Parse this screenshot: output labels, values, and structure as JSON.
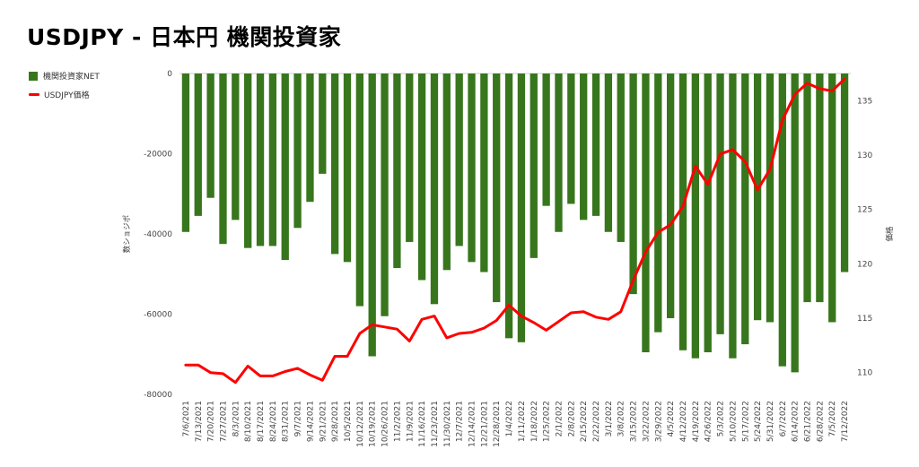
{
  "title": "USDJPY - 日本円 機関投資家",
  "legend": {
    "bar_label": "機関投資家NET",
    "line_label": "USDJPY価格"
  },
  "colors": {
    "bar": "#38761d",
    "line": "#ff0000"
  },
  "chart_data": {
    "type": "bar",
    "title": "USDJPY - 日本円 機関投資家",
    "xlabel": "",
    "ylabel": "数ショジポ",
    "y2label": "価格",
    "ylim": [
      -80000,
      0
    ],
    "y2lim": [
      108,
      137.5
    ],
    "yticks": [
      "0",
      "-20000",
      "-40000",
      "-60000",
      "-80000"
    ],
    "y2ticks": [
      "110",
      "115",
      "120",
      "125",
      "130",
      "135"
    ],
    "legend_position": "top-left",
    "categories": [
      "7/6/2021",
      "7/13/2021",
      "7/20/2021",
      "7/27/2021",
      "8/3/2021",
      "8/10/2021",
      "8/17/2021",
      "8/24/2021",
      "8/31/2021",
      "9/7/2021",
      "9/14/2021",
      "9/21/2021",
      "9/28/2021",
      "10/5/2021",
      "10/12/2021",
      "10/19/2021",
      "10/26/2021",
      "11/2/2021",
      "11/9/2021",
      "11/16/2021",
      "11/23/2021",
      "11/30/2021",
      "12/7/2021",
      "12/14/2021",
      "12/21/2021",
      "12/28/2021",
      "1/4/2022",
      "1/11/2022",
      "1/18/2022",
      "1/25/2022",
      "2/1/2022",
      "2/8/2022",
      "2/15/2022",
      "2/22/2022",
      "3/1/2022",
      "3/8/2022",
      "3/15/2022",
      "3/22/2022",
      "3/29/2022",
      "4/5/2022",
      "4/12/2022",
      "4/19/2022",
      "4/26/2022",
      "5/3/2022",
      "5/10/2022",
      "5/17/2022",
      "5/24/2022",
      "5/31/2022",
      "6/7/2022",
      "6/14/2022",
      "6/21/2022",
      "6/28/2022",
      "7/5/2022",
      "7/12/2022"
    ],
    "x_tick_labels": [
      "7/6/2021",
      "7/13/2021",
      "7/20/2021",
      "7/27/2021",
      "8/3/2021",
      "8/10/2021",
      "8/17/2021",
      "8/24/2021",
      "8/31/2021",
      "9/7/2021",
      "9/14/2021",
      "9/21/2021",
      "9/28/2021",
      "10/5/2021",
      "10/12/2021",
      "10/19/2021",
      "10/26/2021",
      "11/2/2021",
      "11/9/2021",
      "11/16/2021",
      "11/23/2021",
      "11/30/2021",
      "12/7/2021",
      "12/14/2021",
      "12/21/2021",
      "12/28/2021",
      "1/4/2022",
      "1/11/2022",
      "1/18/2022",
      "1/25/2022",
      "2/1/2022",
      "2/8/2022",
      "2/15/2022",
      "2/22/2022",
      "3/1/2022",
      "3/8/2022",
      "3/15/2022",
      "3/22/2022",
      "3/29/2022",
      "4/5/2022",
      "4/12/2022",
      "4/19/2022",
      "4/26/2022",
      "5/3/2022",
      "5/10/2022",
      "5/17/2022",
      "5/24/2022",
      "5/31/2022",
      "6/7/2022",
      "6/14/2022",
      "6/21/2022",
      "6/28/2022",
      "7/5/2022",
      "7/12/2022"
    ],
    "series": [
      {
        "name": "機関投資家NET",
        "type": "bar",
        "axis": "left",
        "values": [
          -39500,
          -35500,
          -31000,
          -42500,
          -36500,
          -43500,
          -43000,
          -43000,
          -46500,
          -38500,
          -32000,
          -25000,
          -45000,
          -47000,
          -58000,
          -70500,
          -60500,
          -48500,
          -42000,
          -51500,
          -57500,
          -49000,
          -43000,
          -47000,
          -49500,
          -57000,
          -66000,
          -67000,
          -46000,
          -33000,
          -39500,
          -32500,
          -36500,
          -35500,
          -39500,
          -42000,
          -55000,
          -69500,
          -64500,
          -61000,
          -69000,
          -71000,
          -69500,
          -65000,
          -71000,
          -67500,
          -61500,
          -62000,
          -73000,
          -74500,
          -57000,
          -57000,
          -62000,
          -49500
        ]
      },
      {
        "name": "USDJPY価格",
        "type": "line",
        "axis": "right",
        "values": [
          110.7,
          110.7,
          110.0,
          109.9,
          109.1,
          110.6,
          109.7,
          109.7,
          110.1,
          110.4,
          109.8,
          109.3,
          111.5,
          111.5,
          113.6,
          114.4,
          114.2,
          114.0,
          112.9,
          114.9,
          115.2,
          113.2,
          113.6,
          113.7,
          114.1,
          114.8,
          116.2,
          115.2,
          114.6,
          113.9,
          114.7,
          115.5,
          115.6,
          115.1,
          114.9,
          115.6,
          118.5,
          121.1,
          122.9,
          123.6,
          125.3,
          129.0,
          127.3,
          130.1,
          130.5,
          129.4,
          126.8,
          128.7,
          133.2,
          135.6,
          136.6,
          136.1,
          135.9,
          137.0
        ]
      }
    ]
  }
}
